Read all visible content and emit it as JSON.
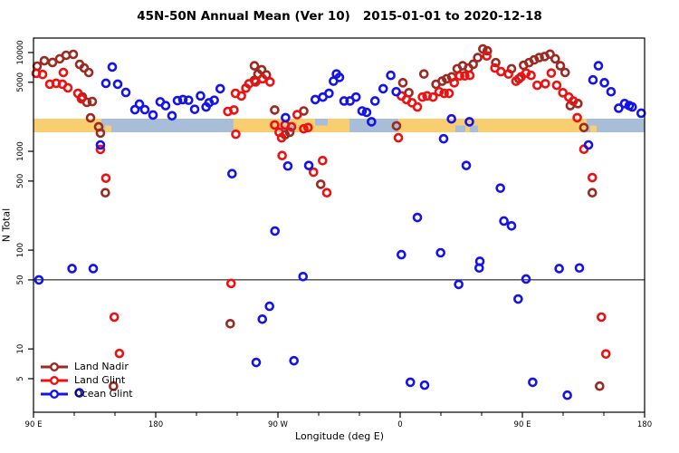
{
  "title": "45N-50N Annual Mean (Ver 10)   2015-01-01 to 2020-12-18",
  "axes": {
    "x": {
      "label": "Longitude (deg E)",
      "range": [
        90,
        540
      ],
      "ticks": [
        {
          "value": 90,
          "label": "90 E"
        },
        {
          "value": 180,
          "label": "180"
        },
        {
          "value": 270,
          "label": "90 W"
        },
        {
          "value": 360,
          "label": "0"
        },
        {
          "value": 450,
          "label": "90 E"
        },
        {
          "value": 540,
          "label": "180"
        }
      ],
      "minor_ticks": [
        120,
        150,
        210,
        240,
        300,
        330,
        390,
        420,
        480,
        510
      ]
    },
    "y": {
      "label": "N Total",
      "scale": "log",
      "range": [
        2.3,
        14000
      ],
      "ticks": [
        {
          "value": 5,
          "label": "5"
        },
        {
          "value": 10,
          "label": "10"
        },
        {
          "value": 50,
          "label": "50"
        },
        {
          "value": 100,
          "label": "100"
        },
        {
          "value": 500,
          "label": "500"
        },
        {
          "value": 1000,
          "label": "1000"
        },
        {
          "value": 5000,
          "label": "5000"
        },
        {
          "value": 10000,
          "label": "10000"
        }
      ]
    }
  },
  "legend": {
    "items": [
      {
        "label": "Land Nadir",
        "color": "#9C2A22"
      },
      {
        "label": "Land Glint",
        "color": "#EE1111"
      },
      {
        "label": "Ocean Glint",
        "color": "#1414E8"
      }
    ]
  },
  "chart_data": {
    "type": "scatter",
    "title": "45N-50N Annual Mean (Ver 10)   2015-01-01 to 2020-12-18",
    "xlabel": "Longitude (deg E)",
    "ylabel": "N Total",
    "x_range_deg_east": [
      90,
      540
    ],
    "y_log_range": [
      2.3,
      14000
    ],
    "reference_line": {
      "value": 50,
      "color": "#000000"
    },
    "surface_strip": {
      "description": "land/ocean map band for 45N-50N vs longitude",
      "center_value": 2000,
      "land_color": "#F8CE71",
      "ocean_color": "#A7BDD8",
      "segments": [
        {
          "from": 90,
          "to": 140,
          "type": "land",
          "half": "full"
        },
        {
          "from": 140,
          "to": 237.3,
          "type": "ocean",
          "half": "full"
        },
        {
          "from": 237.3,
          "to": 322.7,
          "type": "land",
          "half": "full"
        },
        {
          "from": 322.7,
          "to": 358.7,
          "type": "ocean",
          "half": "full"
        },
        {
          "from": 358.7,
          "to": 497.3,
          "type": "land",
          "half": "full"
        },
        {
          "from": 497.3,
          "to": 540,
          "type": "ocean",
          "half": "full"
        },
        {
          "from": 142.7,
          "to": 147.3,
          "type": "land",
          "half": "bottom"
        },
        {
          "from": 270.7,
          "to": 282.7,
          "type": "ocean",
          "half": "bottom"
        },
        {
          "from": 297.3,
          "to": 306.7,
          "type": "ocean",
          "half": "top"
        },
        {
          "from": 400.7,
          "to": 408,
          "type": "ocean",
          "half": "bottom"
        },
        {
          "from": 411.3,
          "to": 417.3,
          "type": "ocean",
          "half": "bottom"
        },
        {
          "from": 500,
          "to": 504.7,
          "type": "land",
          "half": "bottom"
        }
      ]
    },
    "series": [
      {
        "name": "Land Nadir",
        "color": "#9C2A22",
        "marker": "open-circle",
        "points": [
          [
            92.7,
            7280
          ],
          [
            98,
            8260
          ],
          [
            104,
            7930
          ],
          [
            109.3,
            8630
          ],
          [
            114,
            9380
          ],
          [
            119.3,
            9580
          ],
          [
            124,
            7580
          ],
          [
            126,
            3550
          ],
          [
            127.3,
            6980
          ],
          [
            129.3,
            3130
          ],
          [
            130.7,
            6280
          ],
          [
            132,
            2180
          ],
          [
            133.3,
            3190
          ],
          [
            138,
            1770
          ],
          [
            139.3,
            1530
          ],
          [
            142.9,
            381
          ],
          [
            148.9,
            4.2
          ],
          [
            234.9,
            18
          ],
          [
            252.7,
            7340
          ],
          [
            252.7,
            5230
          ],
          [
            255.3,
            6060
          ],
          [
            258,
            6700
          ],
          [
            261.5,
            5930
          ],
          [
            267.6,
            2620
          ],
          [
            275.3,
            1470
          ],
          [
            278.7,
            1560
          ],
          [
            289,
            2560
          ],
          [
            301.5,
            464
          ],
          [
            357.3,
            1810
          ],
          [
            362,
            4940
          ],
          [
            366.4,
            3920
          ],
          [
            377.5,
            6060
          ],
          [
            386.4,
            4770
          ],
          [
            390.9,
            5130
          ],
          [
            394.2,
            5420
          ],
          [
            398,
            5670
          ],
          [
            402,
            6850
          ],
          [
            406,
            7340
          ],
          [
            410.4,
            6960
          ],
          [
            413.8,
            7600
          ],
          [
            417.1,
            8880
          ],
          [
            420.9,
            10860
          ],
          [
            424.2,
            10400
          ],
          [
            430.4,
            7900
          ],
          [
            442,
            6850
          ],
          [
            447.5,
            5420
          ],
          [
            450.9,
            7430
          ],
          [
            454.9,
            7900
          ],
          [
            458.7,
            8430
          ],
          [
            462.4,
            8880
          ],
          [
            466.4,
            9100
          ],
          [
            470.4,
            9620
          ],
          [
            474.2,
            8630
          ],
          [
            478,
            7340
          ],
          [
            481.5,
            6280
          ],
          [
            485.3,
            2900
          ],
          [
            490.9,
            3040
          ],
          [
            495.3,
            1740
          ],
          [
            501.5,
            381
          ],
          [
            506.9,
            4.2
          ]
        ]
      },
      {
        "name": "Land Glint",
        "color": "#EE1111",
        "marker": "open-circle",
        "points": [
          [
            92,
            6150
          ],
          [
            96.7,
            6000
          ],
          [
            102,
            4780
          ],
          [
            106.7,
            4880
          ],
          [
            111.3,
            4780
          ],
          [
            112,
            6280
          ],
          [
            115.3,
            4390
          ],
          [
            122.7,
            3860
          ],
          [
            125.3,
            3400
          ],
          [
            139.3,
            1045
          ],
          [
            143.3,
            535
          ],
          [
            149.5,
            21
          ],
          [
            153.3,
            9
          ],
          [
            233.1,
            2530
          ],
          [
            235.5,
            46
          ],
          [
            237.6,
            2620
          ],
          [
            238.7,
            3860
          ],
          [
            239,
            1490
          ],
          [
            243.1,
            3640
          ],
          [
            246.4,
            4360
          ],
          [
            248.7,
            4830
          ],
          [
            253.6,
            5040
          ],
          [
            258.7,
            5420
          ],
          [
            264.2,
            5040
          ],
          [
            267.6,
            1850
          ],
          [
            270.9,
            1560
          ],
          [
            272.7,
            1370
          ],
          [
            273.1,
            906
          ],
          [
            275.3,
            1850
          ],
          [
            280,
            1770
          ],
          [
            284.2,
            2350
          ],
          [
            289,
            1690
          ],
          [
            292.2,
            1740
          ],
          [
            296.2,
            615
          ],
          [
            302.9,
            805
          ],
          [
            306,
            381
          ],
          [
            358.7,
            1370
          ],
          [
            360.9,
            3640
          ],
          [
            364.7,
            3340
          ],
          [
            368.7,
            3100
          ],
          [
            372.7,
            2810
          ],
          [
            376.4,
            3540
          ],
          [
            379.8,
            3640
          ],
          [
            384.2,
            3540
          ],
          [
            388.7,
            4010
          ],
          [
            392.4,
            3860
          ],
          [
            396,
            3860
          ],
          [
            399.8,
            4940
          ],
          [
            403.8,
            5800
          ],
          [
            407.6,
            5800
          ],
          [
            411.3,
            5870
          ],
          [
            423.8,
            9240
          ],
          [
            429.8,
            6960
          ],
          [
            434.2,
            6400
          ],
          [
            439.8,
            6060
          ],
          [
            445.3,
            5130
          ],
          [
            449.1,
            5670
          ],
          [
            452.7,
            6190
          ],
          [
            456.4,
            5870
          ],
          [
            460.9,
            4660
          ],
          [
            466.9,
            4830
          ],
          [
            471.3,
            6190
          ],
          [
            475.3,
            4660
          ],
          [
            479.8,
            3920
          ],
          [
            484.2,
            3540
          ],
          [
            487.5,
            3230
          ],
          [
            490.4,
            2190
          ],
          [
            495.3,
            1050
          ],
          [
            501.5,
            542
          ],
          [
            508.2,
            21
          ],
          [
            511.5,
            8.9
          ]
        ]
      },
      {
        "name": "Ocean Glint",
        "color": "#1414E8",
        "marker": "open-circle",
        "points": [
          [
            94,
            50
          ],
          [
            118.4,
            65
          ],
          [
            123.8,
            3.6
          ],
          [
            134,
            65
          ],
          [
            139.3,
            1160
          ],
          [
            143.3,
            4880
          ],
          [
            148,
            7130
          ],
          [
            152,
            4780
          ],
          [
            158,
            3940
          ],
          [
            164.7,
            2640
          ],
          [
            168,
            3000
          ],
          [
            172,
            2640
          ],
          [
            178,
            2330
          ],
          [
            183.3,
            3170
          ],
          [
            187.3,
            2900
          ],
          [
            192,
            2290
          ],
          [
            196,
            3260
          ],
          [
            200,
            3340
          ],
          [
            204.2,
            3290
          ],
          [
            208.7,
            2660
          ],
          [
            213,
            3640
          ],
          [
            217.1,
            2810
          ],
          [
            219.3,
            3100
          ],
          [
            223.1,
            3290
          ],
          [
            227.5,
            4300
          ],
          [
            236.2,
            594
          ],
          [
            254,
            7.3
          ],
          [
            258.5,
            20
          ],
          [
            263.8,
            27
          ],
          [
            267.8,
            156
          ],
          [
            275.6,
            2190
          ],
          [
            277.3,
            710
          ],
          [
            281.8,
            7.6
          ],
          [
            288.5,
            54
          ],
          [
            292.7,
            719
          ],
          [
            297.5,
            3340
          ],
          [
            303.1,
            3540
          ],
          [
            307.6,
            3860
          ],
          [
            310.9,
            5130
          ],
          [
            313.1,
            6060
          ],
          [
            315.3,
            5600
          ],
          [
            318.7,
            3230
          ],
          [
            323.1,
            3230
          ],
          [
            327.5,
            3540
          ],
          [
            332,
            2560
          ],
          [
            335.3,
            2480
          ],
          [
            338.9,
            1990
          ],
          [
            341.5,
            3230
          ],
          [
            347.5,
            4300
          ],
          [
            353.1,
            5870
          ],
          [
            357.1,
            4010
          ],
          [
            360.9,
            90
          ],
          [
            367.5,
            4.6
          ],
          [
            372.7,
            214
          ],
          [
            378,
            4.3
          ],
          [
            389.8,
            94
          ],
          [
            392,
            1340
          ],
          [
            397.8,
            2130
          ],
          [
            403.1,
            45
          ],
          [
            408.7,
            719
          ],
          [
            411,
            1990
          ],
          [
            418.2,
            66
          ],
          [
            418.7,
            77
          ],
          [
            433.8,
            424
          ],
          [
            436.4,
            197
          ],
          [
            442,
            176
          ],
          [
            446.9,
            32
          ],
          [
            452.7,
            51
          ],
          [
            457.6,
            4.6
          ],
          [
            477.1,
            65
          ],
          [
            483.1,
            3.4
          ],
          [
            492,
            66
          ],
          [
            498.7,
            1160
          ],
          [
            502,
            5280
          ],
          [
            506,
            7340
          ],
          [
            510.4,
            4940
          ],
          [
            515.3,
            4010
          ],
          [
            520.9,
            2730
          ],
          [
            525.3,
            3040
          ],
          [
            528.7,
            2900
          ],
          [
            530.9,
            2810
          ],
          [
            537.5,
            2430
          ]
        ]
      }
    ]
  }
}
